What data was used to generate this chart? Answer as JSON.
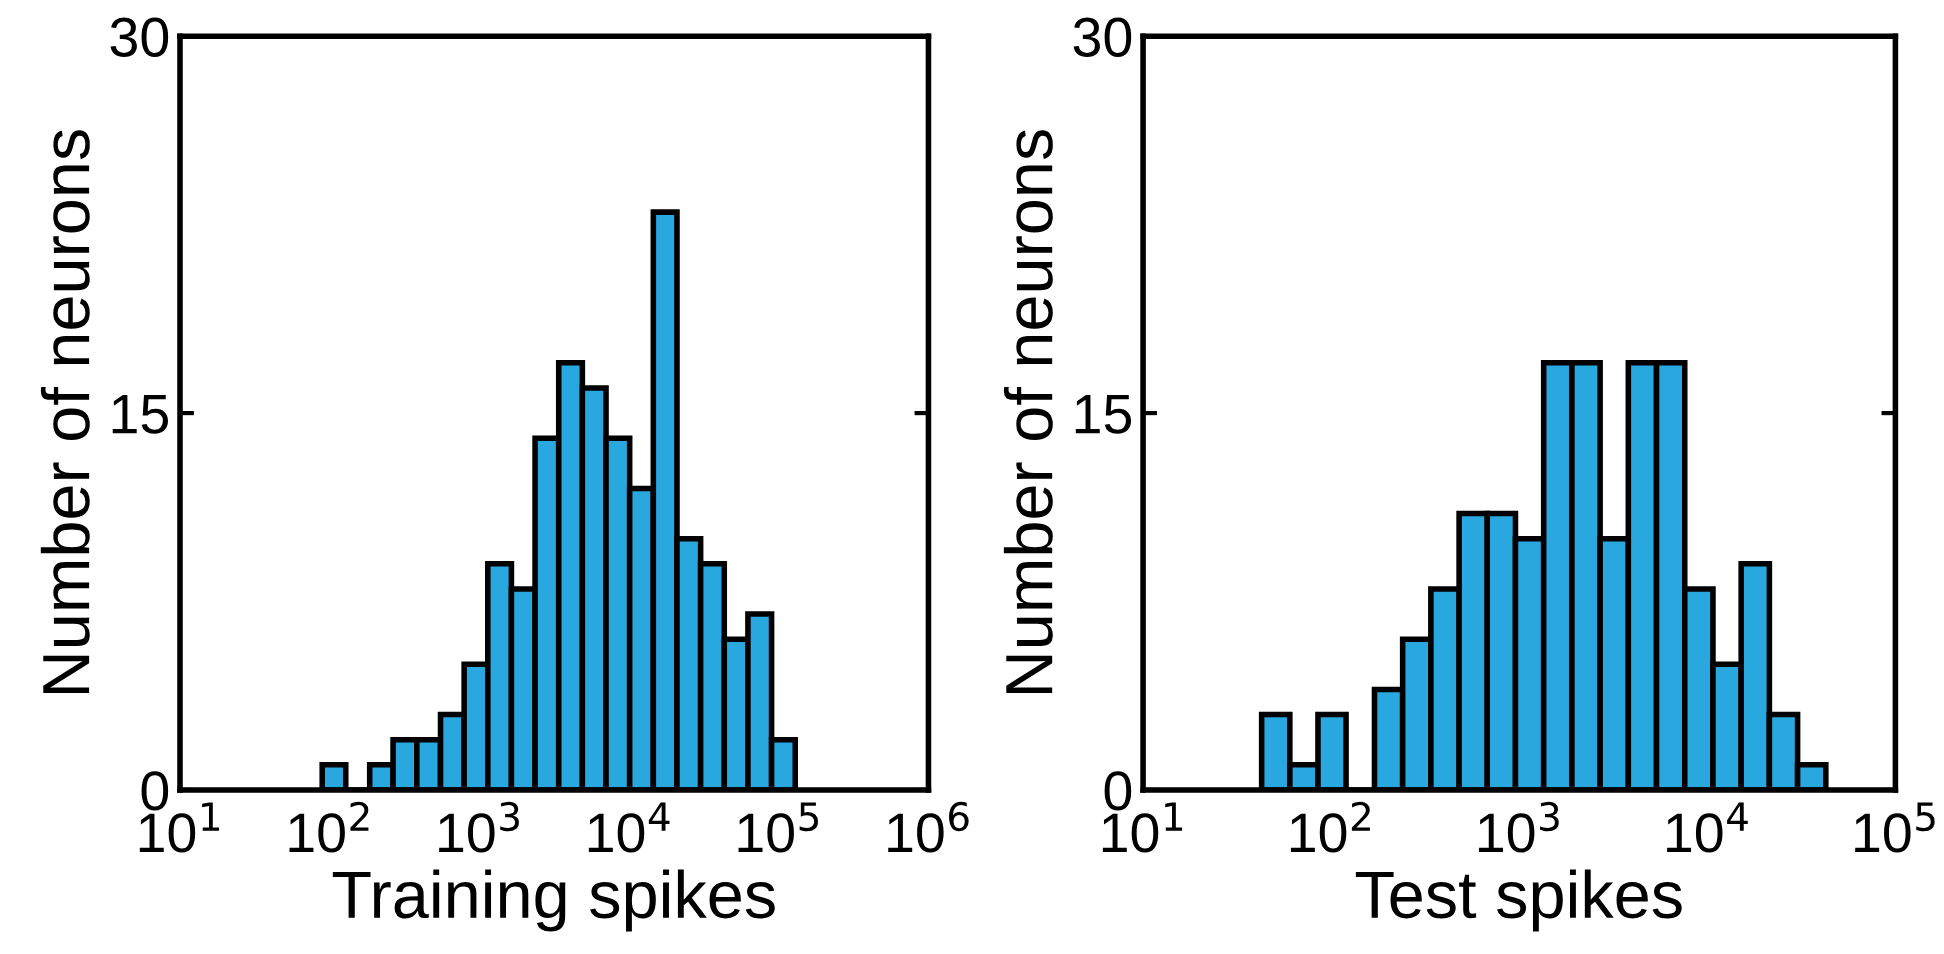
{
  "chart_data": [
    {
      "type": "histogram",
      "xlabel": "Training spikes",
      "ylabel": "Number of neurons",
      "color": "#29a8e0",
      "log": "x",
      "bins": [
        89.1,
        128,
        185,
        265,
        382,
        550,
        791,
        1138,
        1637,
        2355,
        3388,
        4875,
        7015,
        10093,
        14521,
        20893,
        30061,
        43251,
        62230,
        89536,
        128825
      ],
      "values": [
        1,
        0,
        1,
        2,
        2,
        3,
        5,
        9,
        8,
        14,
        17,
        16,
        14,
        12,
        23,
        10,
        9,
        6,
        7,
        2
      ],
      "xlim": [
        10,
        1000000
      ],
      "ylim": [
        0,
        30
      ],
      "yticks": [
        0,
        15,
        30
      ],
      "xticks": [
        {
          "value": 10,
          "label": "10$^{1}$"
        },
        {
          "value": 100,
          "label": "10$^{2}$"
        },
        {
          "value": 1000,
          "label": "10$^{3}$"
        },
        {
          "value": 10000,
          "label": "10$^{4}$"
        },
        {
          "value": 100000,
          "label": "10$^{5}$"
        },
        {
          "value": 1000000,
          "label": "10$^{6}$"
        }
      ]
    },
    {
      "type": "histogram",
      "xlabel": "Test spikes",
      "ylabel": "Number of neurons",
      "color": "#29a8e0",
      "log": "x",
      "bins": [
        42.7,
        60.3,
        85.1,
        120,
        170,
        240,
        339,
        479,
        676,
        955,
        1349,
        1905,
        2692,
        3802,
        5370,
        7586,
        10715,
        15136,
        21380,
        30200,
        42658
      ],
      "values": [
        3,
        1,
        3,
        0,
        4,
        6,
        8,
        11,
        11,
        10,
        17,
        17,
        10,
        17,
        17,
        8,
        5,
        9,
        3,
        1
      ],
      "xlim": [
        10,
        100000
      ],
      "ylim": [
        0,
        30
      ],
      "yticks": [
        0,
        15,
        30
      ],
      "xticks": [
        {
          "value": 10,
          "label": "10$^{1}$"
        },
        {
          "value": 100,
          "label": "10$^{2}$"
        },
        {
          "value": 1000,
          "label": "10$^{3}$"
        },
        {
          "value": 10000,
          "label": "10$^{4}$"
        },
        {
          "value": 100000,
          "label": "10$^{5}$"
        }
      ]
    }
  ]
}
